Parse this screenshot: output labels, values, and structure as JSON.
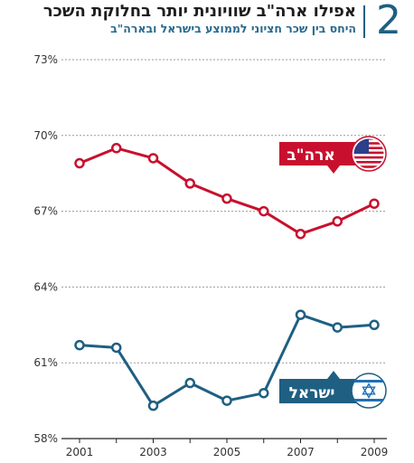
{
  "header": {
    "number": "2",
    "title": "אפילו ארה\"ב שוויונית יותר בחלוקת השכר",
    "subtitle": "היחס בין שכר חציוני לממוצע בישראל ובארה\"ב"
  },
  "chart_data": {
    "type": "line",
    "x": [
      2001,
      2002,
      2003,
      2004,
      2005,
      2006,
      2007,
      2008,
      2009
    ],
    "x_tick_labels": [
      "2001",
      "2003",
      "2005",
      "2007",
      "2009"
    ],
    "x_tick_values": [
      2001,
      2003,
      2005,
      2007,
      2009
    ],
    "y_ticks": [
      58,
      61,
      64,
      67,
      70,
      73
    ],
    "y_tick_labels": [
      "58%",
      "61%",
      "64%",
      "67%",
      "70%",
      "73%"
    ],
    "ylim": [
      58,
      73
    ],
    "grid": "horizontal",
    "series": [
      {
        "name": "ארה\"ב",
        "color": "#c8102e",
        "icon": "us-flag-icon",
        "values": [
          68.9,
          69.5,
          69.1,
          68.1,
          67.5,
          67.0,
          66.1,
          66.6,
          67.3
        ]
      },
      {
        "name": "ישראל",
        "color": "#1f5f82",
        "icon": "israel-flag-icon",
        "values": [
          61.7,
          61.6,
          59.3,
          60.2,
          59.5,
          59.8,
          62.9,
          62.4,
          62.5
        ]
      }
    ]
  }
}
